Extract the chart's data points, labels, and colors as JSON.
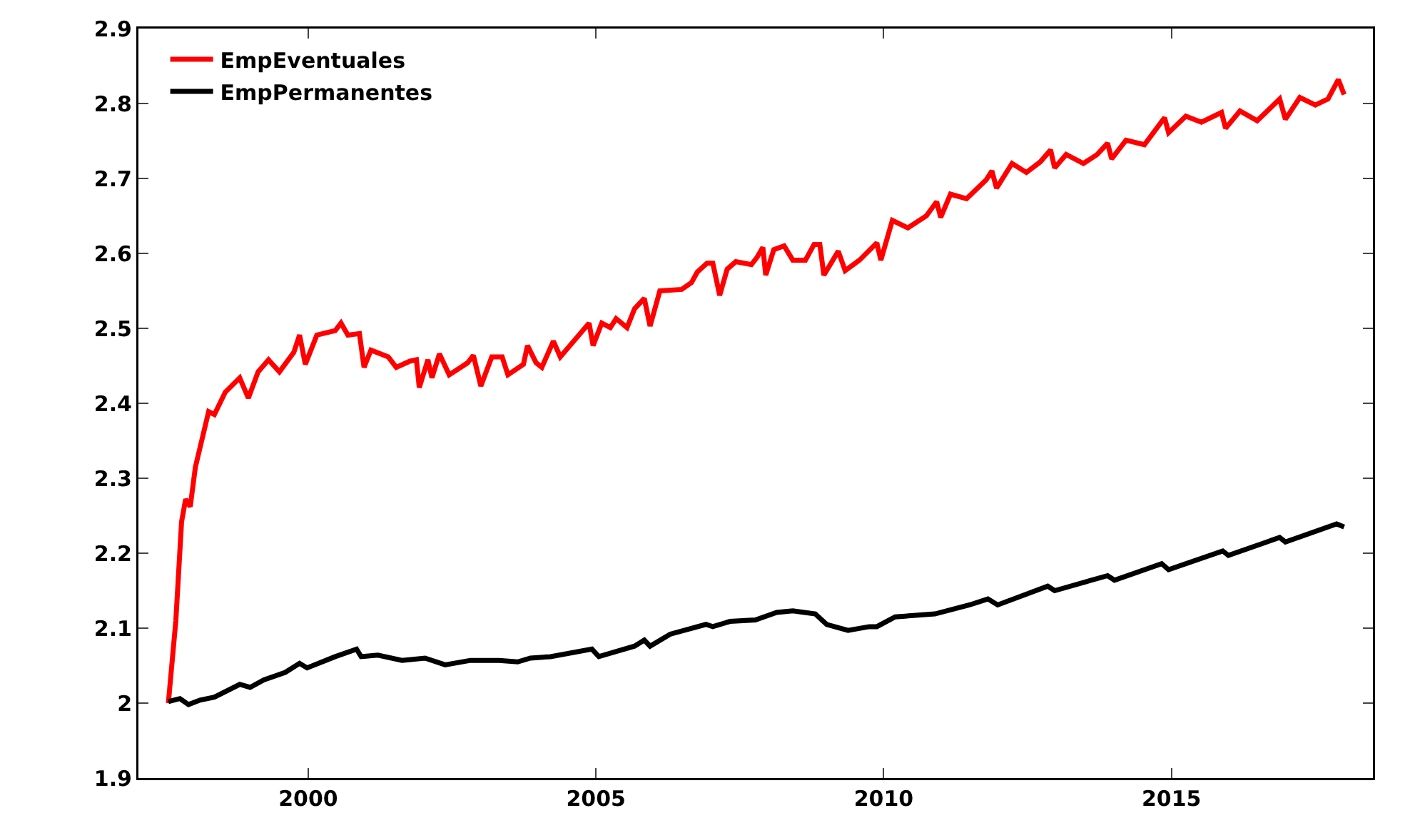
{
  "chart_data": {
    "type": "line",
    "xlim": [
      1997.05,
      2018.5
    ],
    "xticks": [
      2000,
      2005,
      2010,
      2015
    ],
    "ylim": [
      1.9,
      2.9
    ],
    "yticks": [
      1.9,
      2,
      2.1,
      2.2,
      2.3,
      2.4,
      2.5,
      2.6,
      2.7,
      2.8,
      2.9
    ],
    "grid": false,
    "legend": "top left",
    "marker": "none",
    "line_style": "solid",
    "series": [
      {
        "name": "EmpEventuales",
        "color": "#ff0000",
        "x": [
          1997.57,
          1997.7,
          1997.8,
          1997.87,
          1997.95,
          1998.04,
          1998.27,
          1998.37,
          1998.56,
          1998.81,
          1998.96,
          1999.13,
          1999.31,
          1999.5,
          1999.75,
          1999.85,
          1999.95,
          2000.15,
          2000.47,
          2000.57,
          2000.69,
          2000.89,
          2000.97,
          2001.09,
          2001.39,
          2001.53,
          2001.76,
          2001.88,
          2001.93,
          2002.08,
          2002.15,
          2002.28,
          2002.45,
          2002.77,
          2002.87,
          2003.0,
          2003.19,
          2003.37,
          2003.47,
          2003.74,
          2003.81,
          2003.96,
          2004.06,
          2004.26,
          2004.38,
          2004.88,
          2004.95,
          2005.1,
          2005.25,
          2005.35,
          2005.54,
          2005.67,
          2005.84,
          2005.94,
          2006.11,
          2006.49,
          2006.66,
          2006.76,
          2006.93,
          2007.03,
          2007.15,
          2007.28,
          2007.43,
          2007.7,
          2007.8,
          2007.9,
          2007.95,
          2008.09,
          2008.27,
          2008.42,
          2008.64,
          2008.79,
          2008.89,
          2008.96,
          2009.21,
          2009.33,
          2009.58,
          2009.88,
          2009.95,
          2010.15,
          2010.42,
          2010.74,
          2010.92,
          2010.99,
          2011.16,
          2011.44,
          2011.78,
          2011.88,
          2011.96,
          2012.23,
          2012.48,
          2012.72,
          2012.9,
          2012.97,
          2013.17,
          2013.47,
          2013.71,
          2013.89,
          2013.96,
          2014.21,
          2014.53,
          2014.88,
          2014.95,
          2015.25,
          2015.52,
          2015.87,
          2015.94,
          2016.19,
          2016.49,
          2016.88,
          2016.98,
          2017.23,
          2017.5,
          2017.72,
          2017.9,
          2018.0
        ],
        "values": [
          2.0,
          2.11,
          2.242,
          2.272,
          2.262,
          2.315,
          2.389,
          2.385,
          2.415,
          2.434,
          2.407,
          2.442,
          2.458,
          2.442,
          2.468,
          2.491,
          2.452,
          2.491,
          2.497,
          2.507,
          2.491,
          2.493,
          2.448,
          2.471,
          2.462,
          2.448,
          2.456,
          2.458,
          2.421,
          2.458,
          2.434,
          2.466,
          2.438,
          2.454,
          2.464,
          2.423,
          2.462,
          2.462,
          2.438,
          2.452,
          2.477,
          2.454,
          2.448,
          2.483,
          2.462,
          2.507,
          2.477,
          2.507,
          2.501,
          2.513,
          2.501,
          2.526,
          2.54,
          2.503,
          2.55,
          2.552,
          2.561,
          2.575,
          2.587,
          2.587,
          2.544,
          2.579,
          2.589,
          2.585,
          2.595,
          2.608,
          2.571,
          2.605,
          2.61,
          2.591,
          2.591,
          2.612,
          2.612,
          2.571,
          2.603,
          2.577,
          2.591,
          2.614,
          2.591,
          2.644,
          2.634,
          2.65,
          2.669,
          2.648,
          2.679,
          2.673,
          2.698,
          2.71,
          2.687,
          2.72,
          2.708,
          2.722,
          2.738,
          2.714,
          2.732,
          2.72,
          2.732,
          2.747,
          2.726,
          2.751,
          2.745,
          2.781,
          2.761,
          2.783,
          2.775,
          2.788,
          2.767,
          2.79,
          2.777,
          2.806,
          2.779,
          2.808,
          2.798,
          2.806,
          2.832,
          2.812
        ]
      },
      {
        "name": "EmpPermanentes",
        "color": "#000000",
        "x": [
          1997.57,
          1997.77,
          1997.92,
          1998.12,
          1998.37,
          1998.81,
          1998.99,
          1999.23,
          1999.6,
          1999.85,
          1999.98,
          2000.47,
          2000.84,
          2000.92,
          2001.21,
          2001.63,
          2002.03,
          2002.38,
          2002.82,
          2003.32,
          2003.64,
          2003.86,
          2004.21,
          2004.93,
          2005.05,
          2005.67,
          2005.84,
          2005.94,
          2006.29,
          2006.91,
          2007.03,
          2007.33,
          2007.77,
          2008.14,
          2008.42,
          2008.81,
          2009.01,
          2009.38,
          2009.75,
          2009.88,
          2010.2,
          2010.89,
          2011.49,
          2011.81,
          2011.98,
          2012.85,
          2012.97,
          2013.89,
          2014.01,
          2014.83,
          2014.95,
          2015.89,
          2015.99,
          2016.88,
          2016.98,
          2017.87,
          2018.0
        ],
        "values": [
          2.002,
          2.006,
          1.998,
          2.004,
          2.008,
          2.025,
          2.021,
          2.031,
          2.041,
          2.053,
          2.047,
          2.062,
          2.072,
          2.062,
          2.064,
          2.057,
          2.06,
          2.051,
          2.057,
          2.057,
          2.055,
          2.06,
          2.062,
          2.072,
          2.062,
          2.076,
          2.084,
          2.076,
          2.092,
          2.105,
          2.102,
          2.109,
          2.111,
          2.121,
          2.123,
          2.119,
          2.105,
          2.097,
          2.102,
          2.102,
          2.115,
          2.119,
          2.131,
          2.139,
          2.131,
          2.156,
          2.15,
          2.17,
          2.164,
          2.186,
          2.178,
          2.203,
          2.197,
          2.221,
          2.215,
          2.239,
          2.235
        ]
      }
    ]
  }
}
